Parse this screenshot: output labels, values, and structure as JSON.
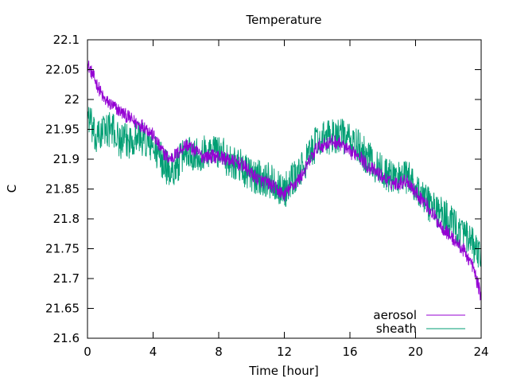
{
  "chart_data": {
    "type": "line",
    "title": "Temperature",
    "xlabel": "Time [hour]",
    "ylabel": "C",
    "xlim": [
      0,
      24
    ],
    "ylim": [
      21.6,
      22.1
    ],
    "xticks": [
      0,
      4,
      8,
      12,
      16,
      20,
      24
    ],
    "xtick_labels": [
      "0",
      "4",
      "8",
      "12",
      "16",
      "20",
      "24"
    ],
    "yticks": [
      21.6,
      21.65,
      21.7,
      21.75,
      21.8,
      21.85,
      21.9,
      21.95,
      22.0,
      22.05,
      22.1
    ],
    "ytick_labels": [
      "21.6",
      "21.65",
      "21.7",
      "21.75",
      "21.8",
      "21.85",
      "21.9",
      "21.95",
      "22",
      "22.05",
      "22.1"
    ],
    "grid": false,
    "legend_position": "bottom-right",
    "x": [
      0,
      0.5,
      1,
      1.5,
      2,
      2.5,
      3,
      3.5,
      4,
      4.5,
      5,
      5.5,
      6,
      6.5,
      7,
      7.5,
      8,
      8.5,
      9,
      9.5,
      10,
      10.5,
      11,
      11.5,
      12,
      12.5,
      13,
      13.5,
      14,
      14.5,
      15,
      15.5,
      16,
      16.5,
      17,
      17.5,
      18,
      18.5,
      19,
      19.5,
      20,
      20.5,
      21,
      21.5,
      22,
      22.5,
      23,
      23.5,
      24
    ],
    "series": [
      {
        "name": "aerosol",
        "color": "#9400d3",
        "noise": 0.012,
        "values": [
          22.06,
          22.03,
          22.0,
          21.99,
          21.98,
          21.97,
          21.96,
          21.955,
          21.94,
          21.915,
          21.9,
          21.91,
          21.925,
          21.915,
          21.905,
          21.905,
          21.905,
          21.9,
          21.895,
          21.89,
          21.875,
          21.865,
          21.86,
          21.85,
          21.84,
          21.855,
          21.87,
          21.895,
          21.92,
          21.925,
          21.93,
          21.925,
          21.91,
          21.91,
          21.89,
          21.88,
          21.87,
          21.86,
          21.86,
          21.865,
          21.845,
          21.83,
          21.81,
          21.79,
          21.775,
          21.76,
          21.745,
          21.72,
          21.67
        ]
      },
      {
        "name": "sheath",
        "color": "#009e73",
        "noise": 0.03,
        "values": [
          21.98,
          21.93,
          21.95,
          21.95,
          21.93,
          21.93,
          21.94,
          21.93,
          21.92,
          21.9,
          21.88,
          21.89,
          21.915,
          21.91,
          21.91,
          21.915,
          21.915,
          21.9,
          21.895,
          21.885,
          21.87,
          21.87,
          21.865,
          21.86,
          21.845,
          21.865,
          21.88,
          21.905,
          21.93,
          21.935,
          21.94,
          21.94,
          21.93,
          21.92,
          21.905,
          21.89,
          21.88,
          21.87,
          21.87,
          21.87,
          21.855,
          21.835,
          21.82,
          21.81,
          21.8,
          21.785,
          21.77,
          21.755,
          21.73
        ]
      }
    ]
  }
}
